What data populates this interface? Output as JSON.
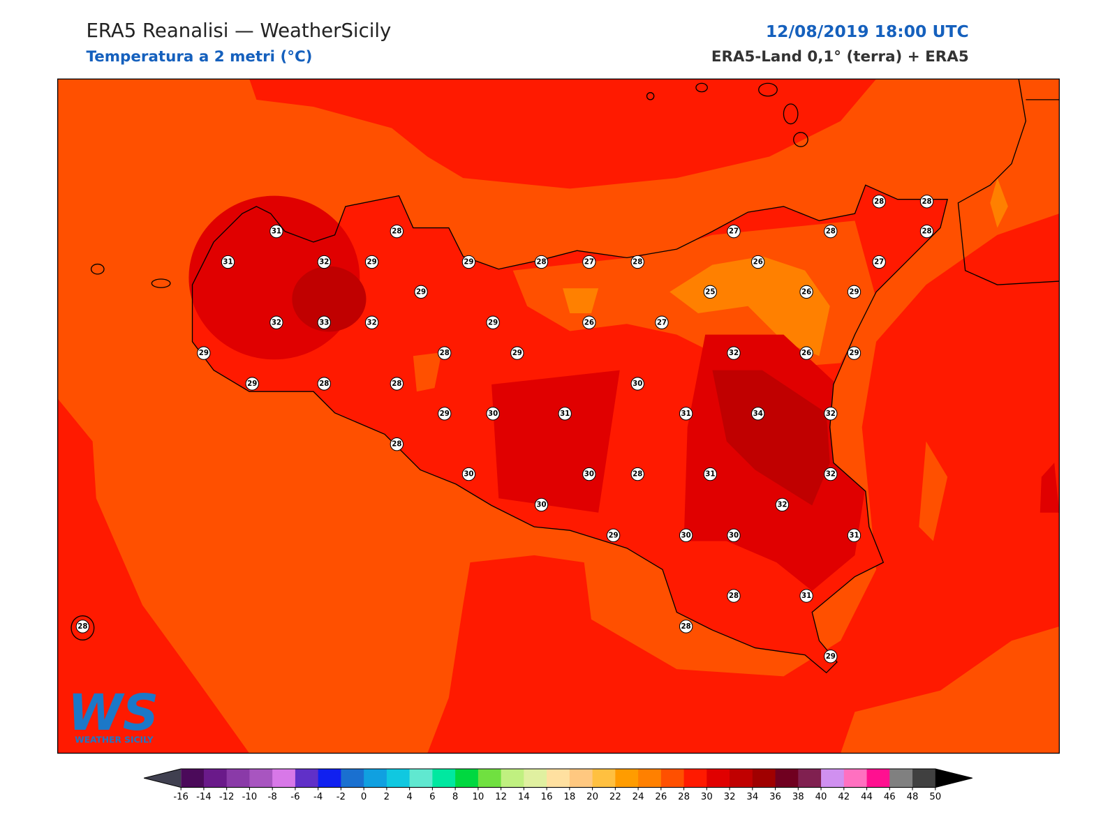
{
  "header": {
    "title": "ERA5 Reanalisi — WeatherSicily",
    "subtitle": "Temperatura a 2 metri (°C)",
    "datetime": "12/08/2019 18:00 UTC",
    "source": "ERA5-Land 0,1° (terra) + ERA5"
  },
  "logo": {
    "mark": "WS",
    "name": "WEATHER SICILY"
  },
  "stations": [
    28,
    28,
    31,
    28,
    27,
    28,
    28,
    31,
    32,
    29,
    29,
    28,
    27,
    28,
    26,
    27,
    29,
    25,
    26,
    29,
    32,
    33,
    32,
    29,
    26,
    27,
    29,
    28,
    29,
    32,
    26,
    29,
    29,
    28,
    28,
    30,
    29,
    30,
    31,
    31,
    34,
    32,
    28,
    30,
    30,
    28,
    31,
    32,
    30,
    32,
    29,
    30,
    30,
    31,
    28,
    31,
    28,
    28,
    29
  ],
  "colorbar": {
    "ticks": [
      -16,
      -14,
      -12,
      -10,
      -8,
      -6,
      -4,
      -2,
      0,
      2,
      4,
      6,
      8,
      10,
      12,
      14,
      16,
      18,
      20,
      22,
      24,
      26,
      28,
      30,
      32,
      34,
      36,
      38,
      40,
      42,
      44,
      46,
      48,
      50
    ],
    "colors": [
      "#4b0a5a",
      "#6a1a8a",
      "#8a3aa8",
      "#a855c0",
      "#d878e8",
      "#6030c8",
      "#1020f0",
      "#1a70d0",
      "#10a0e0",
      "#10c8e0",
      "#60e8d0",
      "#00e8a0",
      "#00d840",
      "#70e040",
      "#c0f080",
      "#e0f0a0",
      "#ffe0a0",
      "#ffc880",
      "#ffc040",
      "#ff9c00",
      "#ff8000",
      "#ff5000",
      "#ff1a00",
      "#e00000",
      "#c00000",
      "#a00000",
      "#700020",
      "#802050",
      "#d090f0",
      "#ff70c0",
      "#ff1090",
      "#808080",
      "#404040"
    ],
    "under_color": "#404050",
    "over_color": "#000000"
  }
}
